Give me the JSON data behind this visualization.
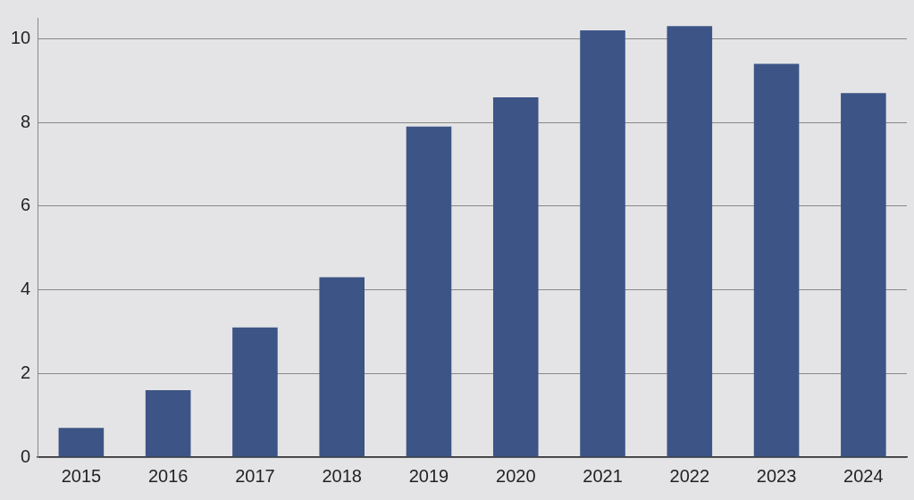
{
  "chart_data": {
    "type": "bar",
    "categories": [
      "2015",
      "2016",
      "2017",
      "2018",
      "2019",
      "2020",
      "2021",
      "2022",
      "2023",
      "2024"
    ],
    "values": [
      0.7,
      1.6,
      3.1,
      4.3,
      7.9,
      8.6,
      10.2,
      10.3,
      9.4,
      8.7
    ],
    "color": "#3d5486",
    "ylim": [
      0,
      10.5
    ],
    "yticks": [
      0,
      2,
      4,
      6,
      8,
      10
    ],
    "grid": "y"
  }
}
